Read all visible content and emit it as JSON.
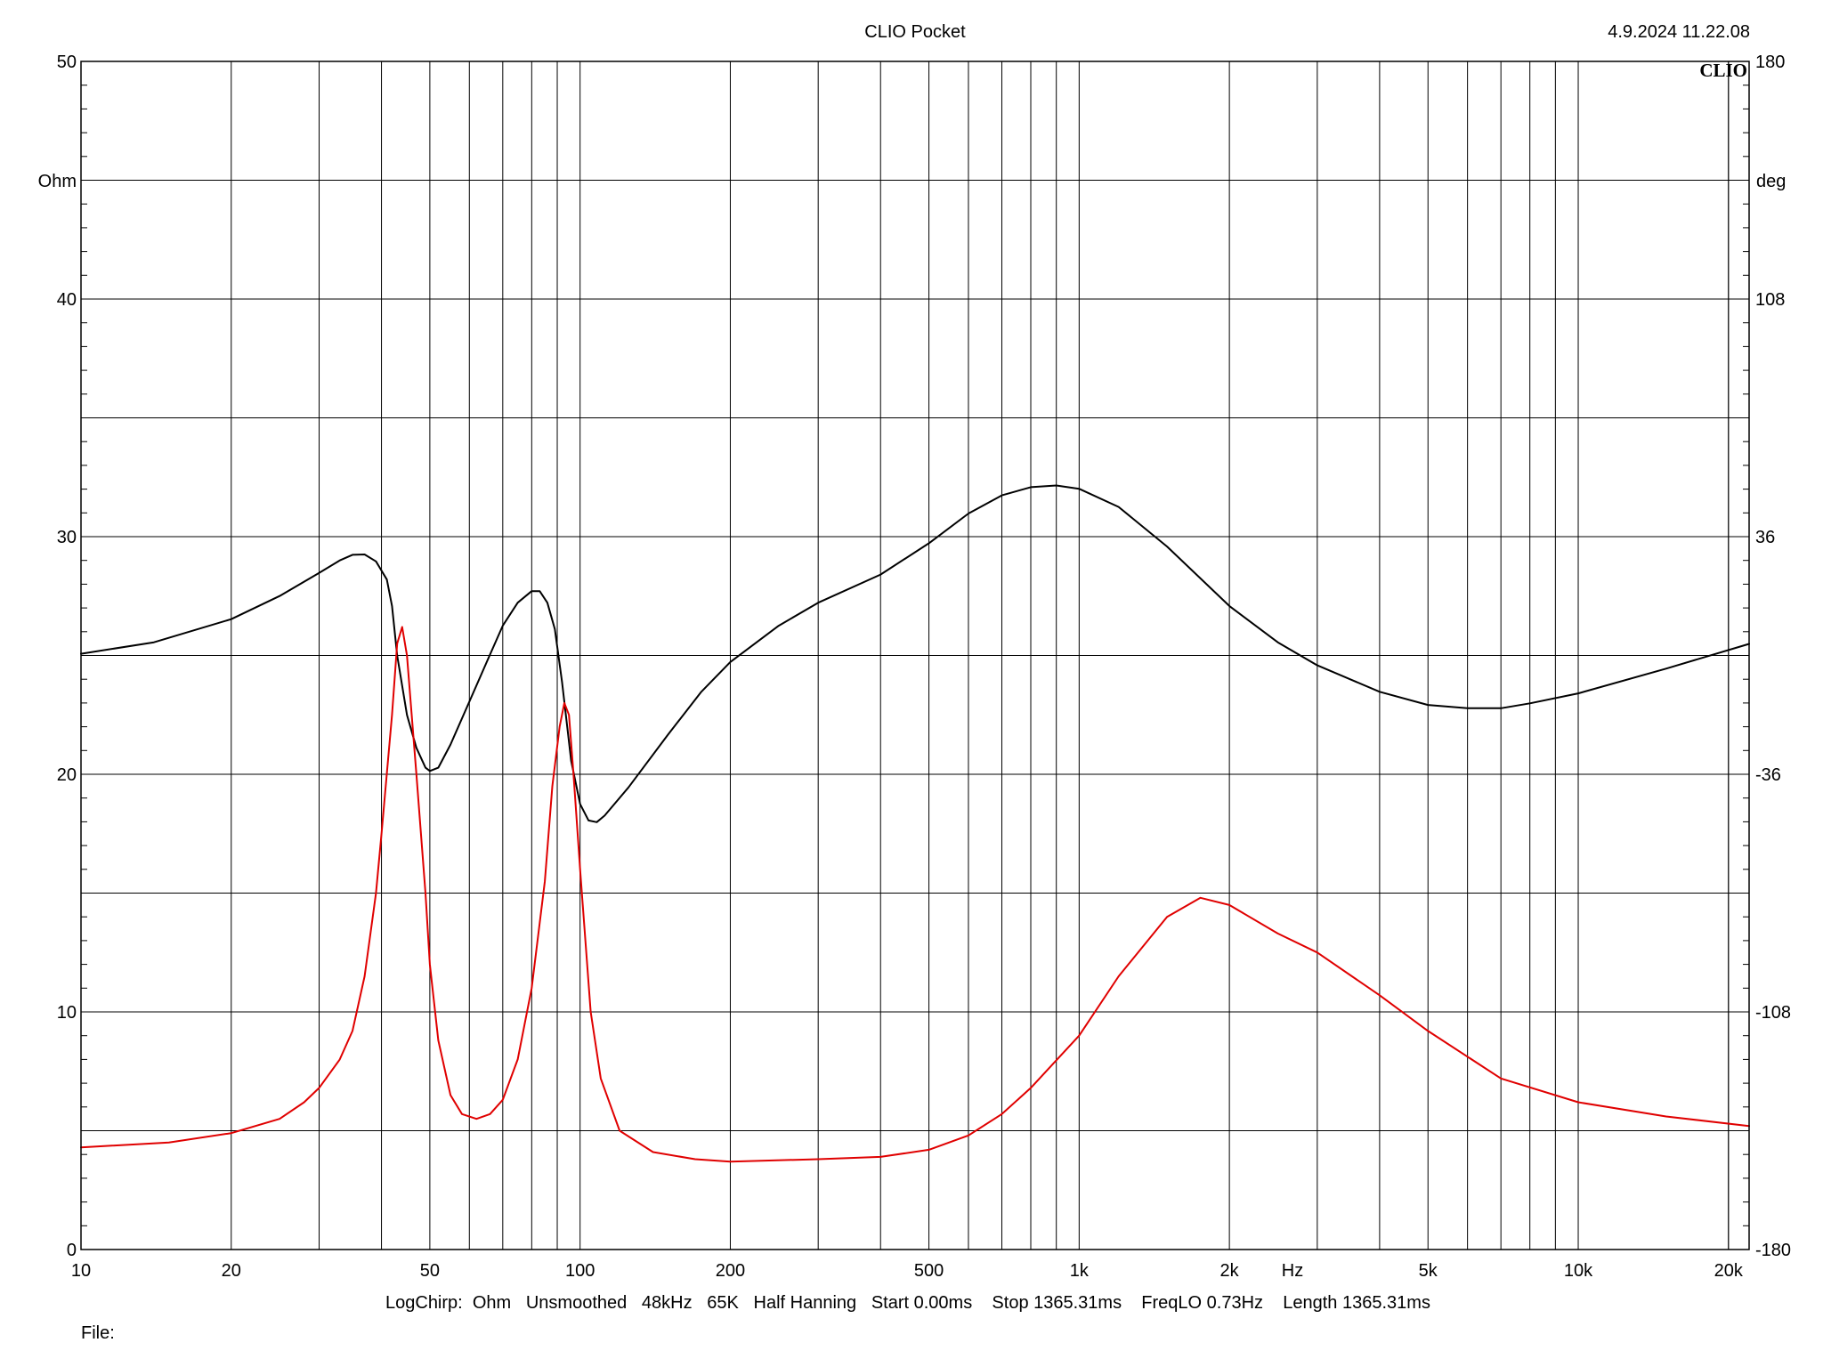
{
  "header": {
    "title": "CLIO Pocket",
    "timestamp": "4.9.2024 11.22.08",
    "logo": "CLIO"
  },
  "footer": {
    "info": "LogChirp:  Ohm   Unsmoothed   48kHz   65K   Half Hanning   Start 0.00ms    Stop 1365.31ms    FreqLO 0.73Hz    Length 1365.31ms",
    "file_label": "File:"
  },
  "chart_data": {
    "type": "line",
    "x_scale": "log",
    "xlim": [
      10,
      22000
    ],
    "ylim": [
      0,
      50
    ],
    "y2lim": [
      -180,
      180
    ],
    "grid": true,
    "xlabel": "Hz",
    "ylabel": "Ohm",
    "y2label": "deg",
    "x_ticks": [
      {
        "v": 10,
        "label": "10"
      },
      {
        "v": 20,
        "label": "20"
      },
      {
        "v": 50,
        "label": "50"
      },
      {
        "v": 100,
        "label": "100"
      },
      {
        "v": 200,
        "label": "200"
      },
      {
        "v": 500,
        "label": "500"
      },
      {
        "v": 1000,
        "label": "1k"
      },
      {
        "v": 2000,
        "label": "2k"
      },
      {
        "v": 5000,
        "label": "5k"
      },
      {
        "v": 10000,
        "label": "10k"
      },
      {
        "v": 20000,
        "label": "20k"
      }
    ],
    "y_ticks": [
      {
        "v": 0,
        "label": "0"
      },
      {
        "v": 10,
        "label": "10"
      },
      {
        "v": 20,
        "label": "20"
      },
      {
        "v": 30,
        "label": "30"
      },
      {
        "v": 40,
        "label": "40"
      },
      {
        "v": 50,
        "label": "50"
      }
    ],
    "y2_ticks": [
      {
        "v": -180,
        "label": "-180"
      },
      {
        "v": -108,
        "label": "-108"
      },
      {
        "v": -36,
        "label": "-36"
      },
      {
        "v": 36,
        "label": "36"
      },
      {
        "v": 108,
        "label": "108"
      },
      {
        "v": 180,
        "label": "180"
      }
    ],
    "series": [
      {
        "axis": "right",
        "color": "#000000",
        "points": [
          [
            10,
            0.5
          ],
          [
            14,
            4
          ],
          [
            20,
            11
          ],
          [
            25,
            18
          ],
          [
            30,
            25
          ],
          [
            33,
            28.8
          ],
          [
            35,
            30.5
          ],
          [
            37,
            30.6
          ],
          [
            39,
            28.5
          ],
          [
            41,
            23
          ],
          [
            42,
            15
          ],
          [
            43,
            0
          ],
          [
            45,
            -18
          ],
          [
            47,
            -28
          ],
          [
            49,
            -34
          ],
          [
            50,
            -35
          ],
          [
            52,
            -34
          ],
          [
            55,
            -27
          ],
          [
            60,
            -14
          ],
          [
            65,
            -2
          ],
          [
            70,
            9
          ],
          [
            75,
            16
          ],
          [
            80,
            19.5
          ],
          [
            83,
            19.5
          ],
          [
            86,
            16
          ],
          [
            89,
            8
          ],
          [
            92,
            -8
          ],
          [
            96,
            -32
          ],
          [
            100,
            -45
          ],
          [
            104,
            -50
          ],
          [
            108,
            -50.5
          ],
          [
            112,
            -48.5
          ],
          [
            125,
            -40
          ],
          [
            150,
            -24
          ],
          [
            175,
            -11
          ],
          [
            200,
            -2
          ],
          [
            250,
            9
          ],
          [
            300,
            16
          ],
          [
            400,
            24.5
          ],
          [
            500,
            34
          ],
          [
            600,
            43
          ],
          [
            700,
            48.5
          ],
          [
            800,
            51
          ],
          [
            900,
            51.5
          ],
          [
            1000,
            50.5
          ],
          [
            1200,
            45
          ],
          [
            1500,
            33
          ],
          [
            2000,
            15
          ],
          [
            2500,
            4
          ],
          [
            3000,
            -3
          ],
          [
            4000,
            -11
          ],
          [
            5000,
            -15
          ],
          [
            6000,
            -16
          ],
          [
            7000,
            -16
          ],
          [
            8000,
            -14.5
          ],
          [
            10000,
            -11.5
          ],
          [
            15000,
            -4
          ],
          [
            22000,
            3.5
          ]
        ]
      },
      {
        "axis": "left",
        "color": "#e00000",
        "points": [
          [
            10,
            4.3
          ],
          [
            15,
            4.5
          ],
          [
            20,
            4.9
          ],
          [
            25,
            5.5
          ],
          [
            28,
            6.2
          ],
          [
            30,
            6.8
          ],
          [
            33,
            8
          ],
          [
            35,
            9.2
          ],
          [
            37,
            11.5
          ],
          [
            39,
            15
          ],
          [
            40,
            17.5
          ],
          [
            42,
            22.5
          ],
          [
            43,
            25.5
          ],
          [
            44,
            26.2
          ],
          [
            45,
            25
          ],
          [
            47,
            20
          ],
          [
            49,
            15
          ],
          [
            50,
            12
          ],
          [
            52,
            8.8
          ],
          [
            55,
            6.5
          ],
          [
            58,
            5.7
          ],
          [
            62,
            5.5
          ],
          [
            66,
            5.7
          ],
          [
            70,
            6.3
          ],
          [
            75,
            8
          ],
          [
            80,
            11
          ],
          [
            85,
            15.5
          ],
          [
            88,
            19.5
          ],
          [
            91,
            22
          ],
          [
            93,
            23
          ],
          [
            95,
            22.5
          ],
          [
            97,
            20
          ],
          [
            100,
            16
          ],
          [
            105,
            10
          ],
          [
            110,
            7.2
          ],
          [
            120,
            5
          ],
          [
            140,
            4.1
          ],
          [
            170,
            3.8
          ],
          [
            200,
            3.7
          ],
          [
            300,
            3.8
          ],
          [
            400,
            3.9
          ],
          [
            500,
            4.2
          ],
          [
            600,
            4.8
          ],
          [
            700,
            5.7
          ],
          [
            800,
            6.8
          ],
          [
            1000,
            9
          ],
          [
            1200,
            11.5
          ],
          [
            1500,
            14
          ],
          [
            1750,
            14.8
          ],
          [
            2000,
            14.5
          ],
          [
            2500,
            13.3
          ],
          [
            3000,
            12.5
          ],
          [
            4000,
            10.7
          ],
          [
            5000,
            9.2
          ],
          [
            7000,
            7.2
          ],
          [
            10000,
            6.2
          ],
          [
            15000,
            5.6
          ],
          [
            22000,
            5.2
          ]
        ]
      }
    ]
  }
}
